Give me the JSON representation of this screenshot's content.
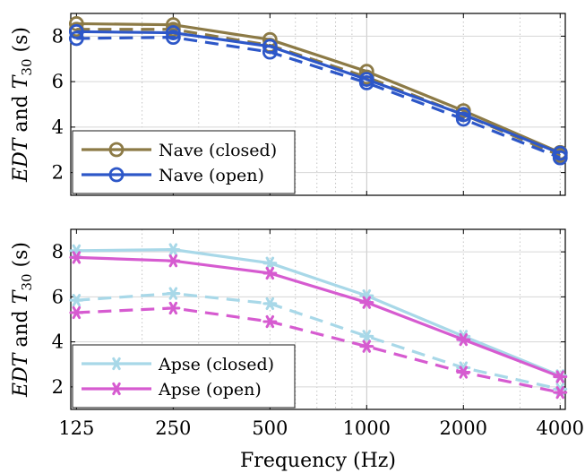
{
  "chart_data": [
    {
      "type": "line",
      "panel": "top",
      "xscale": "log",
      "x": [
        125,
        250,
        500,
        1000,
        2000,
        4000
      ],
      "xlim": [
        120,
        4150
      ],
      "ylim": [
        1,
        9
      ],
      "yticks": [
        2,
        4,
        6,
        8
      ],
      "xticks": [],
      "grid": true,
      "legend": "bottom-left",
      "ylabel_pre": "EDT",
      "ylabel_mid": "and",
      "ylabel_t": "T",
      "ylabel_sub": "30",
      "ylabel_unit": "(s)",
      "xlabel": "",
      "series": [
        {
          "name": "Nave (closed)",
          "metric": "T30",
          "color": "#8c7a46",
          "dash": "solid",
          "marker": "circle",
          "legend": true,
          "values": [
            8.55,
            8.5,
            7.85,
            6.45,
            4.72,
            2.88
          ]
        },
        {
          "name": "",
          "metric": "EDT",
          "color": "#8c7a46",
          "dash": "dashed",
          "marker": "circle",
          "legend": false,
          "values": [
            8.3,
            8.3,
            7.6,
            6.2,
            4.55,
            2.75
          ]
        },
        {
          "name": "Nave (open)",
          "metric": "T30",
          "color": "#2d57c8",
          "dash": "solid",
          "marker": "circle",
          "legend": true,
          "values": [
            8.2,
            8.15,
            7.55,
            6.1,
            4.55,
            2.85
          ]
        },
        {
          "name": "",
          "metric": "EDT",
          "color": "#2d57c8",
          "dash": "dashed",
          "marker": "circle",
          "legend": false,
          "values": [
            7.9,
            7.95,
            7.3,
            5.95,
            4.35,
            2.65
          ]
        }
      ]
    },
    {
      "type": "line",
      "panel": "bottom",
      "xscale": "log",
      "x": [
        125,
        250,
        500,
        1000,
        2000,
        4000
      ],
      "xlim": [
        120,
        4150
      ],
      "ylim": [
        1,
        9
      ],
      "yticks": [
        2,
        4,
        6,
        8
      ],
      "xticks": [
        "125",
        "250",
        "500",
        "1000",
        "2000",
        "4000"
      ],
      "grid": true,
      "legend": "bottom-left",
      "ylabel_pre": "EDT",
      "ylabel_mid": "and",
      "ylabel_t": "T",
      "ylabel_sub": "30",
      "ylabel_unit": "(s)",
      "xlabel": "Frequency (Hz)",
      "series": [
        {
          "name": "Apse (closed)",
          "metric": "T30",
          "color": "#a8d8e8",
          "dash": "solid",
          "marker": "asterisk",
          "legend": true,
          "values": [
            8.05,
            8.1,
            7.5,
            6.05,
            4.25,
            2.5
          ]
        },
        {
          "name": "",
          "metric": "EDT",
          "color": "#a8d8e8",
          "dash": "dashed",
          "marker": "asterisk",
          "legend": false,
          "values": [
            5.85,
            6.15,
            5.7,
            4.25,
            2.85,
            1.9
          ]
        },
        {
          "name": "Apse (open)",
          "metric": "T30",
          "color": "#d65bd0",
          "dash": "solid",
          "marker": "asterisk",
          "legend": true,
          "values": [
            7.75,
            7.6,
            7.05,
            5.75,
            4.1,
            2.45
          ]
        },
        {
          "name": "",
          "metric": "EDT",
          "color": "#d65bd0",
          "dash": "dashed",
          "marker": "asterisk",
          "legend": false,
          "values": [
            5.3,
            5.5,
            4.9,
            3.8,
            2.65,
            1.75
          ]
        }
      ]
    }
  ]
}
